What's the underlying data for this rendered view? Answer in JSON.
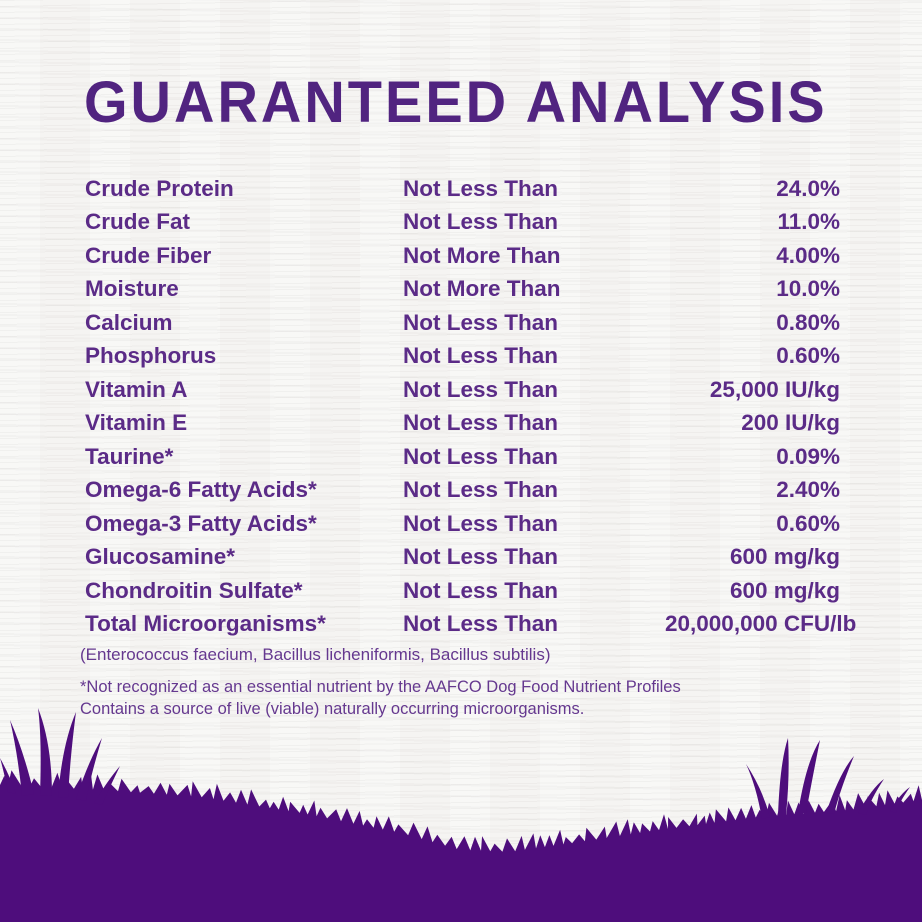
{
  "title": "GUARANTEED ANALYSIS",
  "colors": {
    "background": "#f5f4f2",
    "title": "#512480",
    "text": "#5b2b87",
    "footnote": "#65388f",
    "grass": "#4e0d7c"
  },
  "table": {
    "rows": [
      {
        "nutrient": "Crude Protein",
        "qualifier": "Not Less Than",
        "value": "24.0%"
      },
      {
        "nutrient": "Crude Fat",
        "qualifier": "Not Less Than",
        "value": "11.0%"
      },
      {
        "nutrient": "Crude Fiber",
        "qualifier": "Not More Than",
        "value": "4.00%"
      },
      {
        "nutrient": "Moisture",
        "qualifier": "Not More Than",
        "value": "10.0%"
      },
      {
        "nutrient": "Calcium",
        "qualifier": "Not Less Than",
        "value": "0.80%"
      },
      {
        "nutrient": "Phosphorus",
        "qualifier": "Not Less Than",
        "value": "0.60%"
      },
      {
        "nutrient": "Vitamin A",
        "qualifier": "Not Less Than",
        "value": "25,000 IU/kg"
      },
      {
        "nutrient": "Vitamin E",
        "qualifier": "Not Less Than",
        "value": "200 IU/kg"
      },
      {
        "nutrient": "Taurine*",
        "qualifier": "Not Less Than",
        "value": "0.09%"
      },
      {
        "nutrient": "Omega-6 Fatty Acids*",
        "qualifier": "Not Less Than",
        "value": "2.40%"
      },
      {
        "nutrient": "Omega-3 Fatty Acids*",
        "qualifier": "Not Less Than",
        "value": "0.60%"
      },
      {
        "nutrient": "Glucosamine*",
        "qualifier": "Not Less Than",
        "value": "600 mg/kg"
      },
      {
        "nutrient": "Chondroitin Sulfate*",
        "qualifier": "Not Less Than",
        "value": "600 mg/kg"
      },
      {
        "nutrient": "Total Microorganisms*",
        "qualifier": "Not Less Than",
        "value": "20,000,000 CFU/lb"
      }
    ]
  },
  "microorganisms_note": "(Enterococcus faecium, Bacillus licheniformis, Bacillus subtilis)",
  "footnotes": [
    "*Not recognized as an essential nutrient by the AAFCO Dog Food Nutrient Profiles",
    "Contains a source of live (viable) naturally occurring microorganisms."
  ]
}
